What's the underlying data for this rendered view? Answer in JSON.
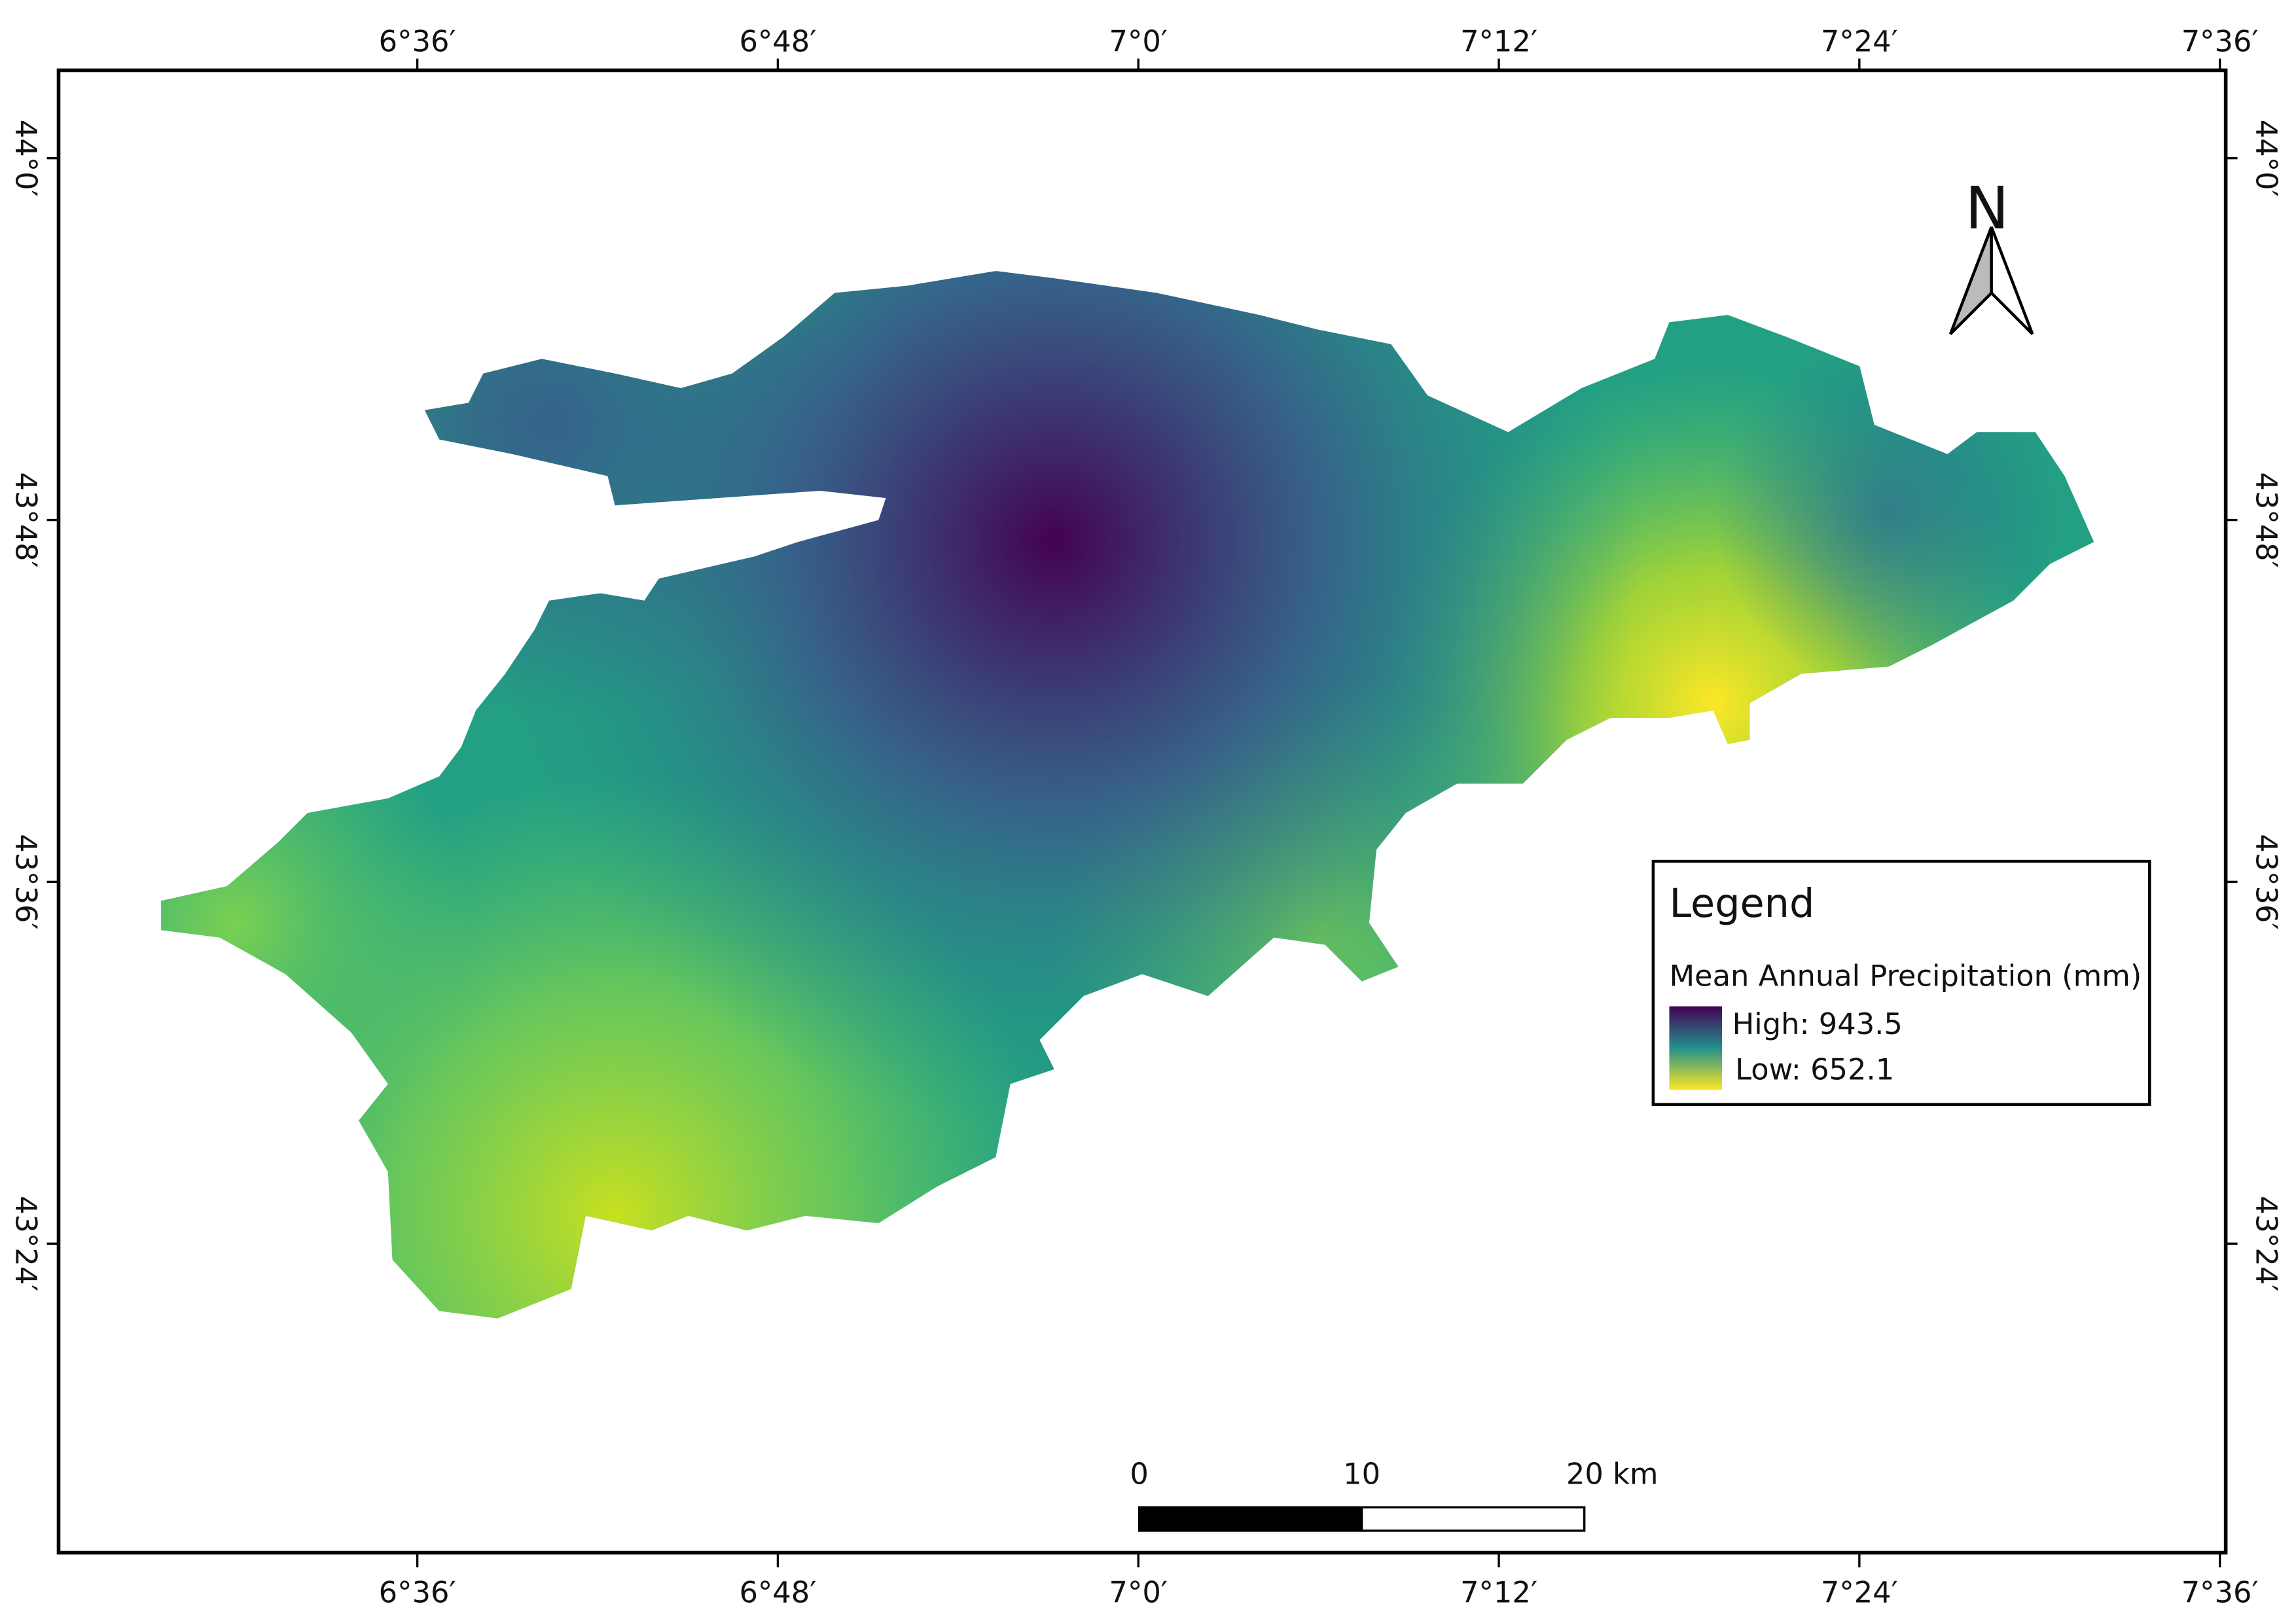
{
  "map": {
    "lon_labels": [
      "6°36′",
      "6°48′",
      "7°0′",
      "7°12′",
      "7°24′",
      "7°36′"
    ],
    "lat_labels": [
      "44°0′",
      "43°48′",
      "43°36′",
      "43°24′"
    ],
    "north": "N",
    "legend": {
      "title": "Legend",
      "subtitle": "Mean Annual Precipitation (mm)",
      "high": "High: 943.5",
      "low": "Low: 652.1"
    },
    "scale_bar": {
      "labels": [
        "0",
        "10",
        "20 km"
      ]
    }
  }
}
